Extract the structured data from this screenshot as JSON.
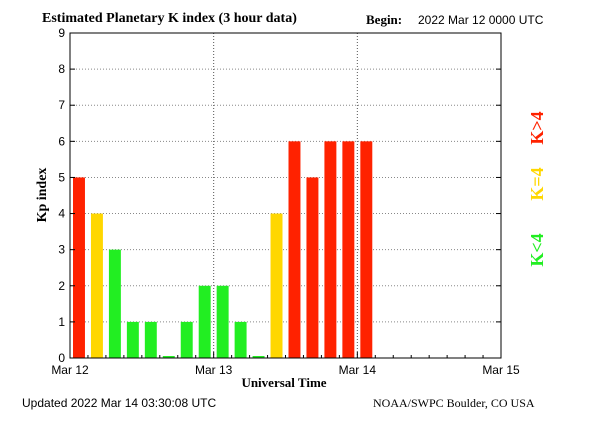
{
  "chart_data": {
    "type": "bar",
    "title": "Estimated Planetary K index (3 hour data)",
    "begin_label": "Begin:",
    "begin_value": "2022 Mar 12 0000 UTC",
    "xlabel": "Universal Time",
    "ylabel": "Kp index",
    "x_ticks": [
      "Mar 12",
      "Mar 13",
      "Mar 14",
      "Mar 15"
    ],
    "y_ticks": [
      "0",
      "1",
      "2",
      "3",
      "4",
      "5",
      "6",
      "7",
      "8",
      "9"
    ],
    "ylim": [
      0,
      9
    ],
    "x_range_days": [
      0,
      3
    ],
    "grid": true,
    "bar_interval_hours": 3,
    "values": [
      5,
      4,
      3,
      1,
      1,
      0.05,
      1,
      2,
      2,
      1,
      0.05,
      4,
      6,
      5,
      6,
      6,
      6
    ],
    "colors": {
      "below_4": "#22ee22",
      "equal_4": "#ffd700",
      "above_4": "#ff2200"
    },
    "legend": [
      {
        "label": "K>4",
        "color": "#ff2200"
      },
      {
        "label": "K=4",
        "color": "#ffd700"
      },
      {
        "label": "K<4",
        "color": "#22ee22"
      }
    ],
    "legend_position": "right-vertical"
  },
  "footer": {
    "updated": "Updated 2022 Mar 14 03:30:08 UTC",
    "source": "NOAA/SWPC Boulder, CO USA"
  }
}
